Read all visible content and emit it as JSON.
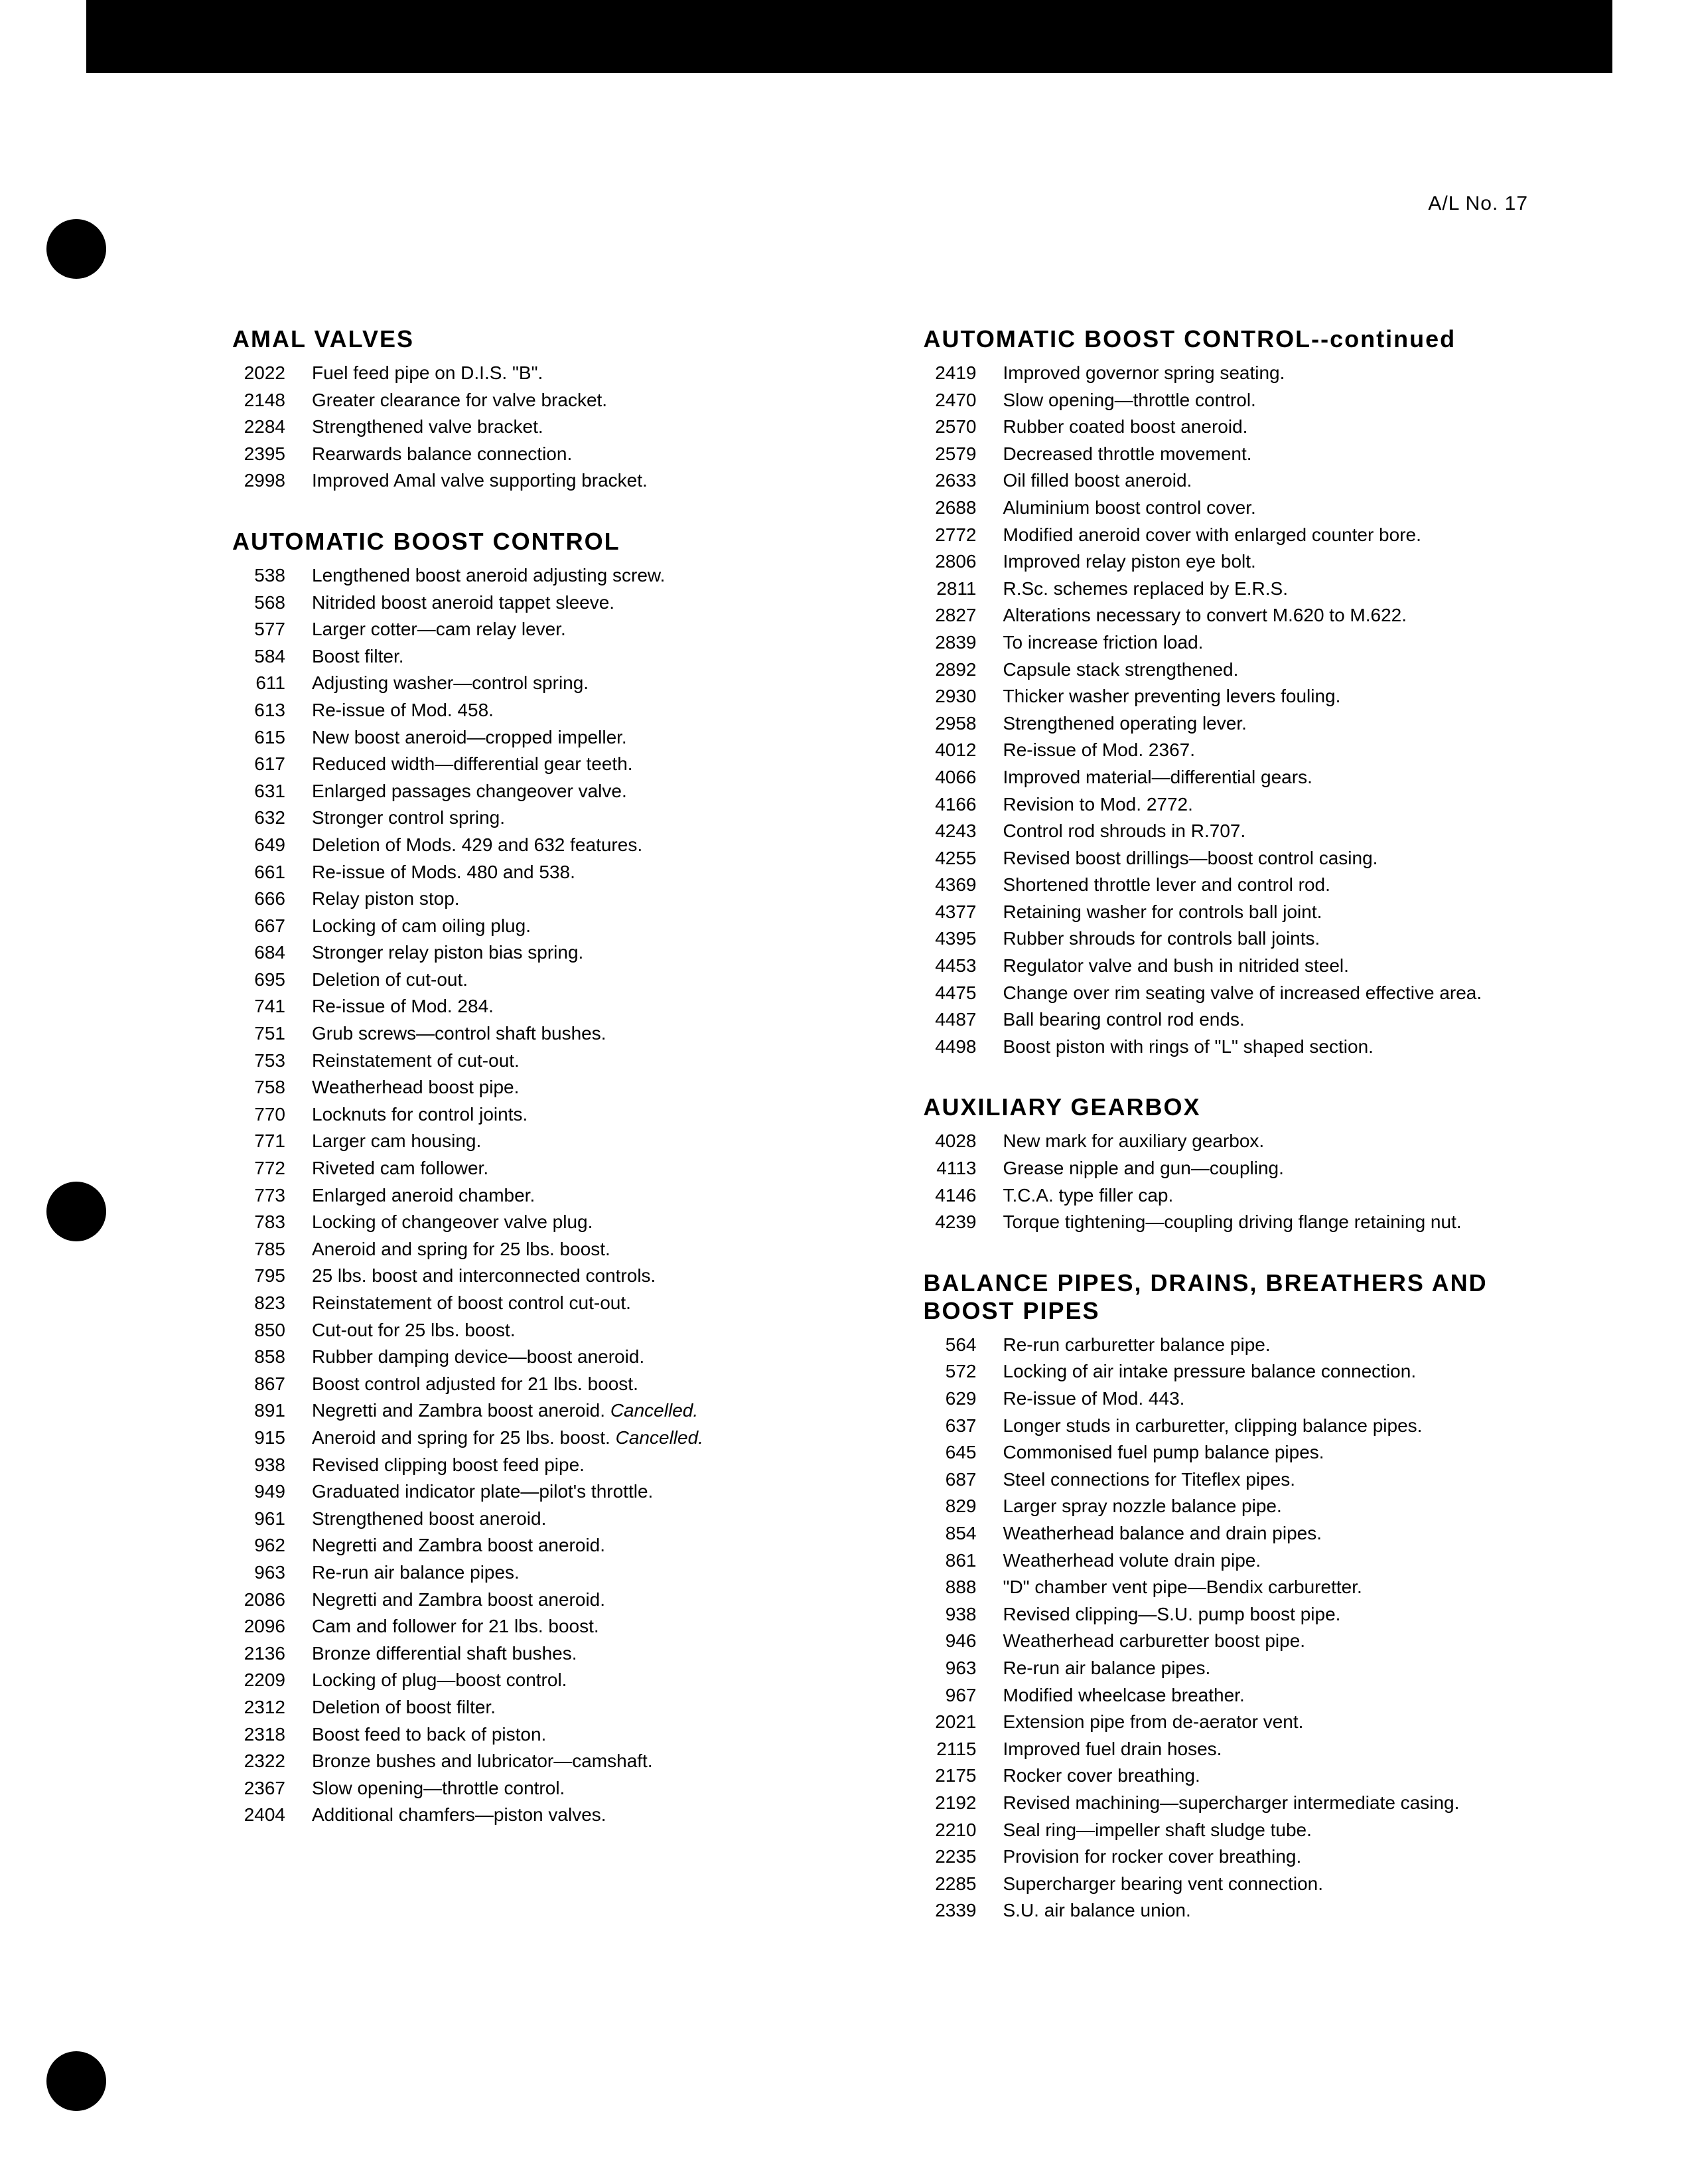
{
  "doc_number": "A/L No. 17",
  "left": [
    {
      "heading": "AMAL VALVES",
      "rows": [
        {
          "n": "2022",
          "d": "Fuel feed pipe on D.I.S. \"B\"."
        },
        {
          "n": "2148",
          "d": "Greater clearance for valve bracket."
        },
        {
          "n": "2284",
          "d": "Strengthened valve bracket."
        },
        {
          "n": "2395",
          "d": "Rearwards balance connection."
        },
        {
          "n": "2998",
          "d": "Improved Amal valve supporting bracket."
        }
      ]
    },
    {
      "heading": "AUTOMATIC BOOST CONTROL",
      "rows": [
        {
          "n": "538",
          "d": "Lengthened boost aneroid adjusting screw."
        },
        {
          "n": "568",
          "d": "Nitrided boost aneroid tappet sleeve."
        },
        {
          "n": "577",
          "d": "Larger cotter—cam relay lever."
        },
        {
          "n": "584",
          "d": "Boost filter."
        },
        {
          "n": "611",
          "d": "Adjusting washer—control spring."
        },
        {
          "n": "613",
          "d": "Re-issue of Mod. 458."
        },
        {
          "n": "615",
          "d": "New boost aneroid—cropped impeller."
        },
        {
          "n": "617",
          "d": "Reduced width—differential gear teeth."
        },
        {
          "n": "631",
          "d": "Enlarged passages changeover valve."
        },
        {
          "n": "632",
          "d": "Stronger control spring."
        },
        {
          "n": "649",
          "d": "Deletion of Mods. 429 and 632 features."
        },
        {
          "n": "661",
          "d": "Re-issue of Mods. 480 and 538."
        },
        {
          "n": "666",
          "d": "Relay piston stop."
        },
        {
          "n": "667",
          "d": "Locking of cam oiling plug."
        },
        {
          "n": "684",
          "d": "Stronger relay piston bias spring."
        },
        {
          "n": "695",
          "d": "Deletion of cut-out."
        },
        {
          "n": "741",
          "d": "Re-issue of Mod. 284."
        },
        {
          "n": "751",
          "d": "Grub screws—control shaft bushes."
        },
        {
          "n": "753",
          "d": "Reinstatement of cut-out."
        },
        {
          "n": "758",
          "d": "Weatherhead boost pipe."
        },
        {
          "n": "770",
          "d": "Locknuts for control joints."
        },
        {
          "n": "771",
          "d": "Larger cam housing."
        },
        {
          "n": "772",
          "d": "Riveted cam follower."
        },
        {
          "n": "773",
          "d": "Enlarged aneroid chamber."
        },
        {
          "n": "783",
          "d": "Locking of changeover valve plug."
        },
        {
          "n": "785",
          "d": "Aneroid and spring for 25 lbs. boost."
        },
        {
          "n": "795",
          "d": "25 lbs. boost and interconnected controls."
        },
        {
          "n": "823",
          "d": "Reinstatement of boost control cut-out."
        },
        {
          "n": "850",
          "d": "Cut-out for 25 lbs. boost."
        },
        {
          "n": "858",
          "d": "Rubber damping device—boost aneroid."
        },
        {
          "n": "867",
          "d": "Boost control adjusted for 21 lbs. boost."
        },
        {
          "n": "891",
          "d": "Negretti and Zambra boost aneroid.  ",
          "cancelled": "Cancelled."
        },
        {
          "n": "915",
          "d": "Aneroid and spring for 25 lbs. boost.  ",
          "cancelled": "Cancelled."
        },
        {
          "n": "938",
          "d": "Revised clipping boost feed pipe."
        },
        {
          "n": "949",
          "d": "Graduated indicator plate—pilot's throttle."
        },
        {
          "n": "961",
          "d": "Strengthened boost aneroid."
        },
        {
          "n": "962",
          "d": "Negretti and Zambra boost aneroid."
        },
        {
          "n": "963",
          "d": "Re-run air balance pipes."
        },
        {
          "n": "2086",
          "d": "Negretti and Zambra boost aneroid."
        },
        {
          "n": "2096",
          "d": "Cam and follower for 21 lbs. boost."
        },
        {
          "n": "2136",
          "d": "Bronze differential shaft bushes."
        },
        {
          "n": "2209",
          "d": "Locking of plug—boost control."
        },
        {
          "n": "2312",
          "d": "Deletion of boost filter."
        },
        {
          "n": "2318",
          "d": "Boost feed to back of piston."
        },
        {
          "n": "2322",
          "d": "Bronze bushes and lubricator—camshaft."
        },
        {
          "n": "2367",
          "d": "Slow opening—throttle control."
        },
        {
          "n": "2404",
          "d": "Additional chamfers—piston valves."
        }
      ]
    }
  ],
  "right": [
    {
      "heading": "AUTOMATIC BOOST CONTROL--continued",
      "rows": [
        {
          "n": "2419",
          "d": "Improved governor spring seating."
        },
        {
          "n": "2470",
          "d": "Slow opening—throttle control."
        },
        {
          "n": "2570",
          "d": "Rubber coated boost aneroid."
        },
        {
          "n": "2579",
          "d": "Decreased throttle movement."
        },
        {
          "n": "2633",
          "d": "Oil filled boost aneroid."
        },
        {
          "n": "2688",
          "d": "Aluminium boost control cover."
        },
        {
          "n": "2772",
          "d": "Modified aneroid cover with enlarged counter bore."
        },
        {
          "n": "2806",
          "d": "Improved relay piston eye bolt."
        },
        {
          "n": "2811",
          "d": "R.Sc. schemes replaced by E.R.S."
        },
        {
          "n": "2827",
          "d": "Alterations necessary to convert M.620 to M.622."
        },
        {
          "n": "2839",
          "d": "To increase friction load."
        },
        {
          "n": "2892",
          "d": "Capsule stack strengthened."
        },
        {
          "n": "2930",
          "d": "Thicker washer preventing levers fouling."
        },
        {
          "n": "2958",
          "d": "Strengthened operating lever."
        },
        {
          "n": "4012",
          "d": "Re-issue of Mod. 2367."
        },
        {
          "n": "4066",
          "d": "Improved material—differential gears."
        },
        {
          "n": "4166",
          "d": "Revision to Mod. 2772."
        },
        {
          "n": "4243",
          "d": "Control rod shrouds in R.707."
        },
        {
          "n": "4255",
          "d": "Revised boost drillings—boost control casing."
        },
        {
          "n": "4369",
          "d": "Shortened throttle lever and control rod."
        },
        {
          "n": "4377",
          "d": "Retaining washer for controls ball joint."
        },
        {
          "n": "4395",
          "d": "Rubber shrouds for controls ball joints."
        },
        {
          "n": "4453",
          "d": "Regulator valve and bush in nitrided steel."
        },
        {
          "n": "4475",
          "d": "Change over rim seating valve of increased effective area."
        },
        {
          "n": "4487",
          "d": "Ball bearing control rod ends."
        },
        {
          "n": "4498",
          "d": "Boost piston with rings of \"L\" shaped section."
        }
      ]
    },
    {
      "heading": "AUXILIARY GEARBOX",
      "rows": [
        {
          "n": "4028",
          "d": "New mark for auxiliary gearbox."
        },
        {
          "n": "4113",
          "d": "Grease nipple and gun—coupling."
        },
        {
          "n": "4146",
          "d": "T.C.A. type filler cap."
        },
        {
          "n": "4239",
          "d": "Torque tightening—coupling driving flange retaining nut."
        }
      ]
    },
    {
      "heading": "BALANCE PIPES, DRAINS, BREATHERS AND BOOST PIPES",
      "rows": [
        {
          "n": "564",
          "d": "Re-run carburetter balance pipe."
        },
        {
          "n": "572",
          "d": "Locking of air intake pressure balance connection."
        },
        {
          "n": "629",
          "d": "Re-issue of Mod. 443."
        },
        {
          "n": "637",
          "d": "Longer studs in carburetter, clipping balance pipes."
        },
        {
          "n": "645",
          "d": "Commonised fuel pump balance pipes."
        },
        {
          "n": "687",
          "d": "Steel connections for Titeflex pipes."
        },
        {
          "n": "829",
          "d": "Larger spray nozzle balance pipe."
        },
        {
          "n": "854",
          "d": "Weatherhead balance and drain pipes."
        },
        {
          "n": "861",
          "d": "Weatherhead volute drain pipe."
        },
        {
          "n": "888",
          "d": "\"D\" chamber vent pipe—Bendix carburetter."
        },
        {
          "n": "938",
          "d": "Revised clipping—S.U. pump boost pipe."
        },
        {
          "n": "946",
          "d": "Weatherhead carburetter boost pipe."
        },
        {
          "n": "963",
          "d": "Re-run air balance pipes."
        },
        {
          "n": "967",
          "d": "Modified wheelcase breather."
        },
        {
          "n": "2021",
          "d": "Extension pipe from de-aerator vent."
        },
        {
          "n": "2115",
          "d": "Improved fuel drain hoses."
        },
        {
          "n": "2175",
          "d": "Rocker cover breathing."
        },
        {
          "n": "2192",
          "d": "Revised machining—supercharger intermediate casing."
        },
        {
          "n": "2210",
          "d": "Seal ring—impeller shaft sludge tube."
        },
        {
          "n": "2235",
          "d": "Provision for rocker cover breathing."
        },
        {
          "n": "2285",
          "d": "Supercharger bearing vent connection."
        },
        {
          "n": "2339",
          "d": "S.U. air balance union."
        }
      ]
    }
  ]
}
